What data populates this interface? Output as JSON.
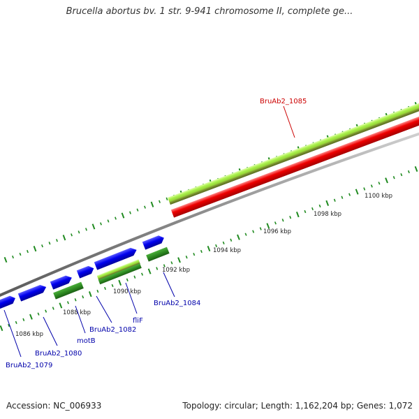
{
  "title": "Brucella abortus bv. 1 str. 9-941 chromosome II, complete ge...",
  "footer": {
    "accession": "Accession: NC_006933",
    "summary": "Topology: circular; Length: 1,162,204 bp; Genes: 1,072"
  },
  "colors": {
    "background": "#ffffff",
    "backbone": "#8c8c8c",
    "forward_cds": "#0000ee",
    "reverse_cds": "#2e8b22",
    "feature_light": "#a8f04a",
    "feature_dark": "#6b8e23",
    "highlighted_feature": "#ee0000",
    "tick": "#1f8a1f",
    "label_blue": "#0000aa",
    "label_red": "#cc0000",
    "tick_label": "#222222"
  },
  "ruler": {
    "unit": "kbp",
    "ticks": [
      {
        "kbp": 1086,
        "label": "1086 kbp"
      },
      {
        "kbp": 1088,
        "label": "1088 kbp"
      },
      {
        "kbp": 1090,
        "label": "1090 kbp"
      },
      {
        "kbp": 1092,
        "label": "1092 kbp"
      },
      {
        "kbp": 1094,
        "label": "1094 kbp"
      },
      {
        "kbp": 1096,
        "label": "1096 kbp"
      },
      {
        "kbp": 1098,
        "label": "1098 kbp"
      },
      {
        "kbp": 1100,
        "label": "1100 kbp"
      }
    ]
  },
  "labels": [
    {
      "id": "BruAb2_1079",
      "text": "BruAb2_1079",
      "color": "blue"
    },
    {
      "id": "BruAb2_1080",
      "text": "BruAb2_1080",
      "color": "blue"
    },
    {
      "id": "motB",
      "text": "motB",
      "color": "blue"
    },
    {
      "id": "BruAb2_1082",
      "text": "BruAb2_1082",
      "color": "blue"
    },
    {
      "id": "fliF",
      "text": "fliF",
      "color": "blue"
    },
    {
      "id": "BruAb2_1084",
      "text": "BruAb2_1084",
      "color": "blue"
    },
    {
      "id": "BruAb2_1085",
      "text": "BruAb2_1085",
      "color": "red"
    }
  ]
}
